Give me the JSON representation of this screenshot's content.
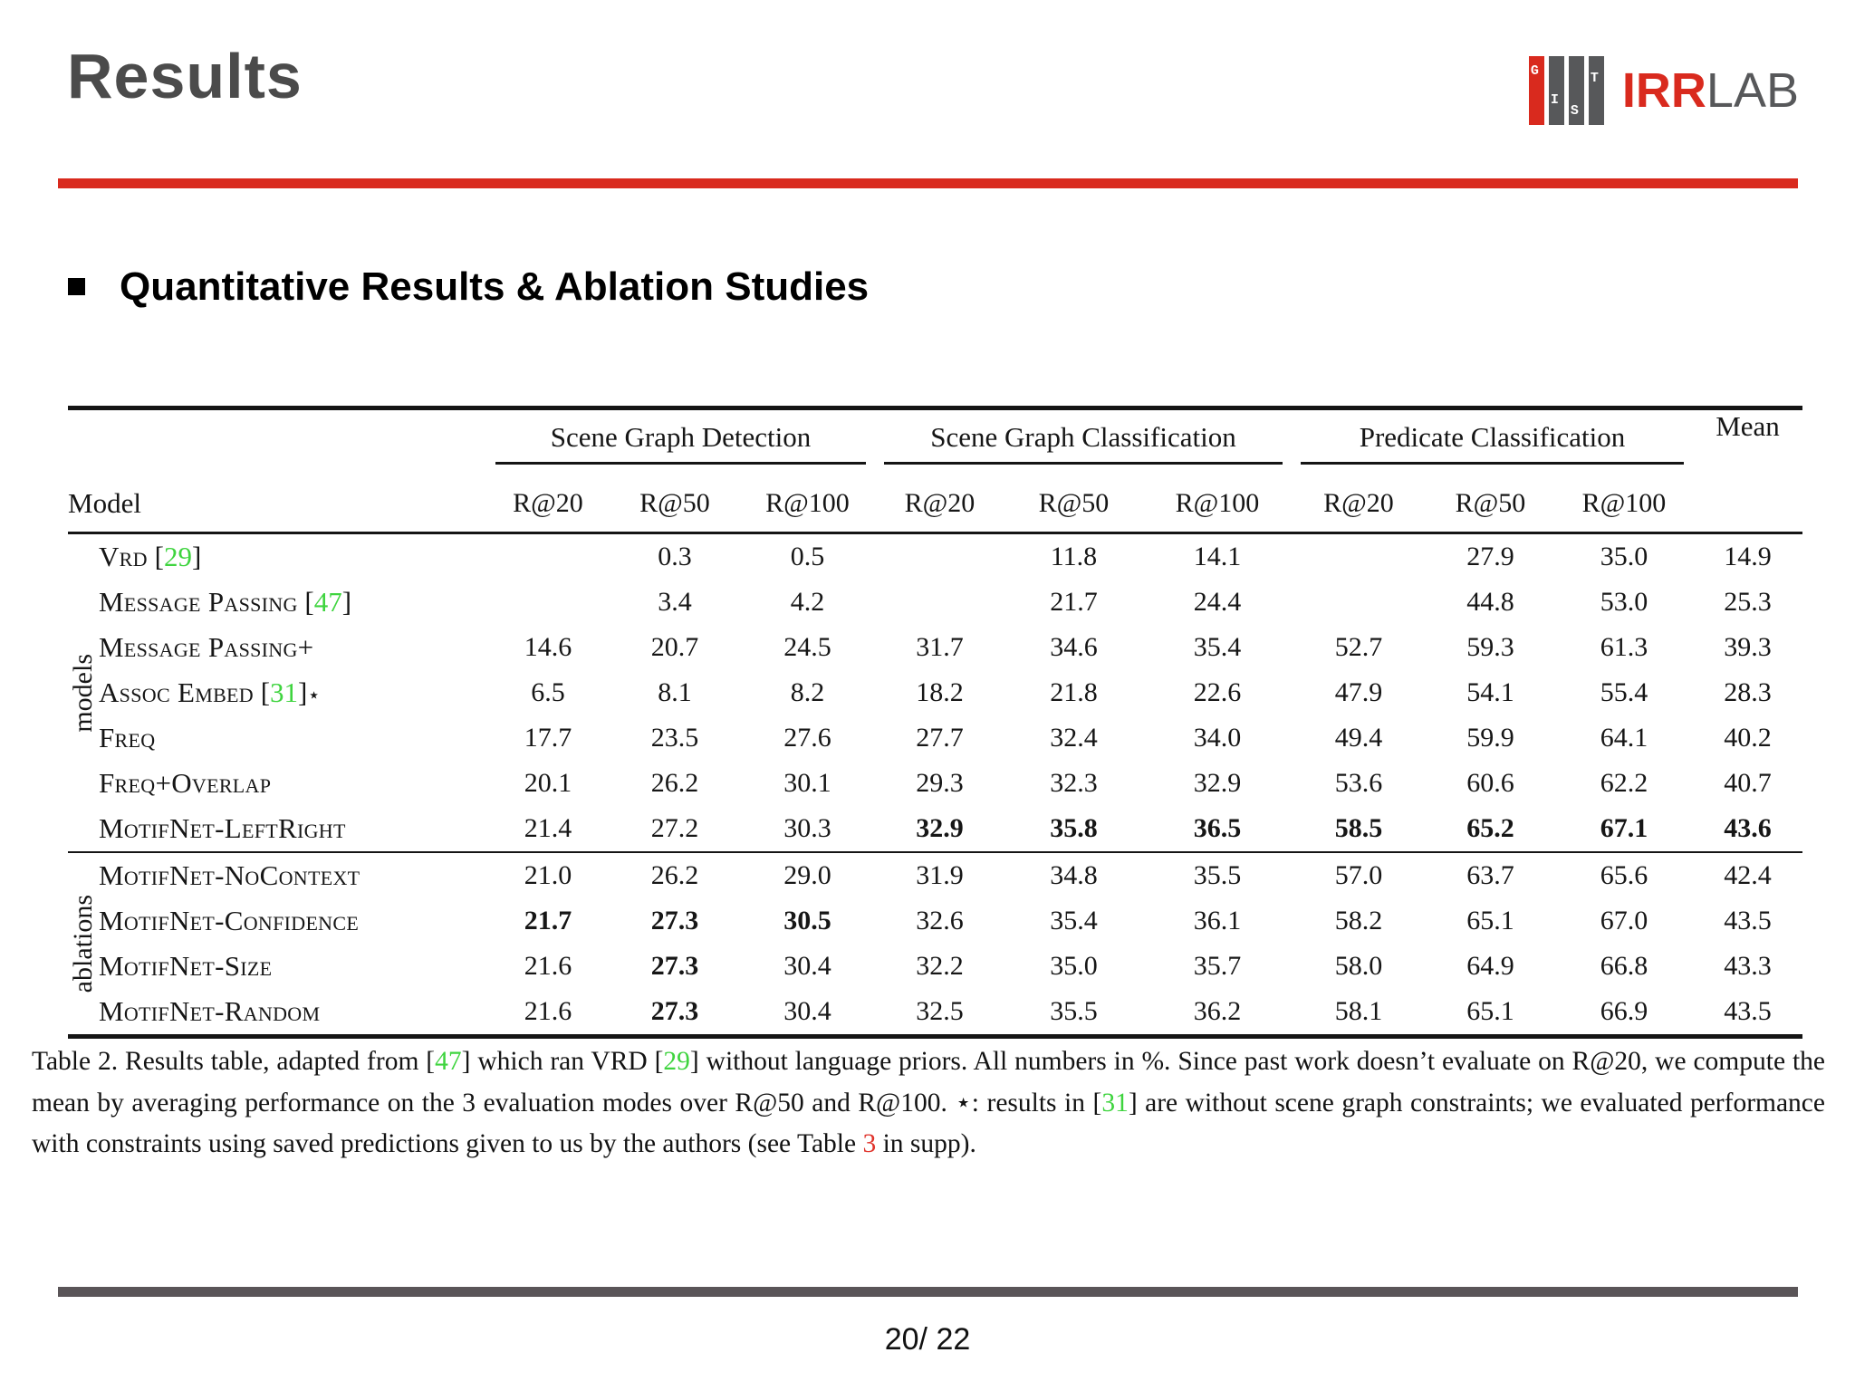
{
  "slide": {
    "title": "Results",
    "heading": "Quantitative Results & Ablation Studies",
    "page_number": "20/ 22"
  },
  "logo": {
    "letters": [
      "G",
      "I",
      "S",
      "T"
    ],
    "brand_bold": "IRR",
    "brand_light": "LAB"
  },
  "colors": {
    "accent_red": "#d92a1e",
    "citation_green": "#3fd43f",
    "footer_gray": "#5a5558",
    "title_gray": "#4b4b4b"
  },
  "table": {
    "model_header": "Model",
    "mean_header": "Mean",
    "groups": [
      {
        "label": "Scene Graph Detection",
        "span": 3
      },
      {
        "label": "Scene Graph Classification",
        "span": 3
      },
      {
        "label": "Predicate Classification",
        "span": 3
      }
    ],
    "sub_headers": [
      "R@20",
      "R@50",
      "R@100",
      "R@20",
      "R@50",
      "R@100",
      "R@20",
      "R@50",
      "R@100"
    ],
    "row_groups": [
      {
        "label": "models",
        "rows": [
          {
            "name": "Vrd",
            "cite": "29",
            "values": [
              "",
              "0.3",
              "0.5",
              "",
              "11.8",
              "14.1",
              "",
              "27.9",
              "35.0",
              "14.9"
            ]
          },
          {
            "name": "Message Passing",
            "cite": "47",
            "values": [
              "",
              "3.4",
              "4.2",
              "",
              "21.7",
              "24.4",
              "",
              "44.8",
              "53.0",
              "25.3"
            ]
          },
          {
            "name": "Message Passing+",
            "values": [
              "14.6",
              "20.7",
              "24.5",
              "31.7",
              "34.6",
              "35.4",
              "52.7",
              "59.3",
              "61.3",
              "39.3"
            ]
          },
          {
            "name": "Assoc Embed",
            "cite": "31",
            "star": true,
            "values": [
              "6.5",
              "8.1",
              "8.2",
              "18.2",
              "21.8",
              "22.6",
              "47.9",
              "54.1",
              "55.4",
              "28.3"
            ]
          },
          {
            "name": "Freq",
            "values": [
              "17.7",
              "23.5",
              "27.6",
              "27.7",
              "32.4",
              "34.0",
              "49.4",
              "59.9",
              "64.1",
              "40.2"
            ]
          },
          {
            "name": "Freq+Overlap",
            "values": [
              "20.1",
              "26.2",
              "30.1",
              "29.3",
              "32.3",
              "32.9",
              "53.6",
              "60.6",
              "62.2",
              "40.7"
            ]
          },
          {
            "name": "MotifNet-LeftRight",
            "values": [
              "21.4",
              "27.2",
              "30.3",
              "32.9",
              "35.8",
              "36.5",
              "58.5",
              "65.2",
              "67.1",
              "43.6"
            ],
            "bold": [
              3,
              4,
              5,
              6,
              7,
              8,
              9
            ]
          }
        ]
      },
      {
        "label": "ablations",
        "rows": [
          {
            "name": "MotifNet-NoContext",
            "values": [
              "21.0",
              "26.2",
              "29.0",
              "31.9",
              "34.8",
              "35.5",
              "57.0",
              "63.7",
              "65.6",
              "42.4"
            ]
          },
          {
            "name": "MotifNet-Confidence",
            "values": [
              "21.7",
              "27.3",
              "30.5",
              "32.6",
              "35.4",
              "36.1",
              "58.2",
              "65.1",
              "67.0",
              "43.5"
            ],
            "bold": [
              0,
              1,
              2
            ]
          },
          {
            "name": "MotifNet-Size",
            "values": [
              "21.6",
              "27.3",
              "30.4",
              "32.2",
              "35.0",
              "35.7",
              "58.0",
              "64.9",
              "66.8",
              "43.3"
            ],
            "bold": [
              1
            ]
          },
          {
            "name": "MotifNet-Random",
            "values": [
              "21.6",
              "27.3",
              "30.4",
              "32.5",
              "35.5",
              "36.2",
              "58.1",
              "65.1",
              "66.9",
              "43.5"
            ],
            "bold": [
              1
            ]
          }
        ]
      }
    ]
  },
  "caption": {
    "segments": [
      {
        "t": "Table 2. Results table, adapted from ["
      },
      {
        "t": "47",
        "c": "green"
      },
      {
        "t": "] which ran VRD ["
      },
      {
        "t": "29",
        "c": "green"
      },
      {
        "t": "] without language priors.  All numbers in %.  Since past work doesn’t evaluate on R@20, we compute the mean by averaging performance on the 3 evaluation modes over R@50 and R@100.  ⋆:  results in ["
      },
      {
        "t": "31",
        "c": "green"
      },
      {
        "t": "] are without scene graph constraints; we evaluated performance with constraints using saved predictions given to us by the authors (see Table "
      },
      {
        "t": "3",
        "c": "red"
      },
      {
        "t": " in supp)."
      }
    ]
  }
}
